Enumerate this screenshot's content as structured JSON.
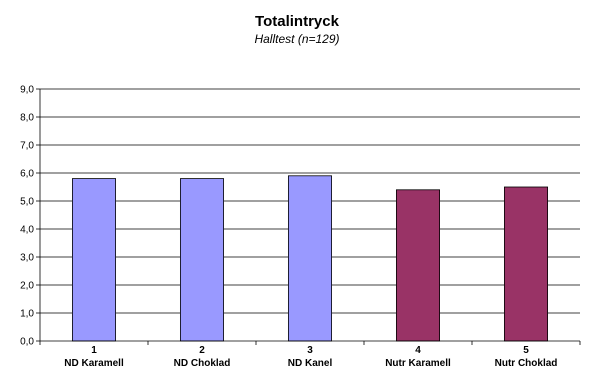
{
  "chart_data": {
    "type": "bar",
    "title": "Totalintryck",
    "subtitle": "Halltest (n=129)",
    "categories": [
      {
        "number": "1",
        "label": "ND Karamell"
      },
      {
        "number": "2",
        "label": "ND Choklad"
      },
      {
        "number": "3",
        "label": "ND Kanel"
      },
      {
        "number": "4",
        "label": "Nutr Karamell"
      },
      {
        "number": "5",
        "label": "Nutr Choklad"
      }
    ],
    "values": [
      5.8,
      5.8,
      5.9,
      5.4,
      5.5
    ],
    "bar_colors": [
      "#9999ff",
      "#9999ff",
      "#9999ff",
      "#993366",
      "#993366"
    ],
    "ylim": [
      0,
      9
    ],
    "ytick_step": 1,
    "ytick_labels": [
      "0,0",
      "1,0",
      "2,0",
      "3,0",
      "4,0",
      "5,0",
      "6,0",
      "7,0",
      "8,0",
      "9,0"
    ],
    "grid": true,
    "legend": "none"
  }
}
